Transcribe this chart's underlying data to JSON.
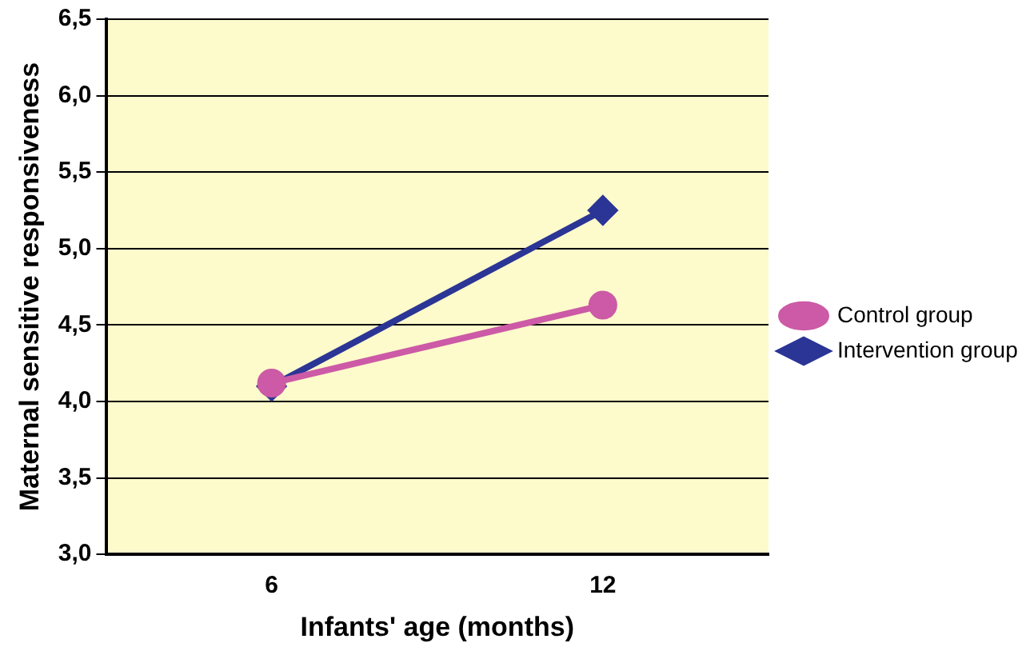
{
  "chart_data": {
    "type": "line",
    "xlabel": "Infants' age (months)",
    "ylabel": "Maternal sensitive responsiveness",
    "categories": [
      "6",
      "12"
    ],
    "series": [
      {
        "name": "Intervention group",
        "color": "#2b3595",
        "marker": "diamond",
        "values": [
          4.1,
          5.25
        ]
      },
      {
        "name": "Control group",
        "color": "#cc5aa6",
        "marker": "circle",
        "values": [
          4.12,
          4.63
        ]
      }
    ],
    "ylim": [
      3.0,
      6.5
    ],
    "yticks": [
      {
        "value": 3.0,
        "label": "3,0"
      },
      {
        "value": 3.5,
        "label": "3,5"
      },
      {
        "value": 4.0,
        "label": "4,0"
      },
      {
        "value": 4.5,
        "label": "4,5"
      },
      {
        "value": 5.0,
        "label": "5,0"
      },
      {
        "value": 5.5,
        "label": "5,5"
      },
      {
        "value": 6.0,
        "label": "6,0"
      },
      {
        "value": 6.5,
        "label": "6,5"
      }
    ],
    "grid": "y",
    "legend": "right",
    "line_style": "solid"
  }
}
